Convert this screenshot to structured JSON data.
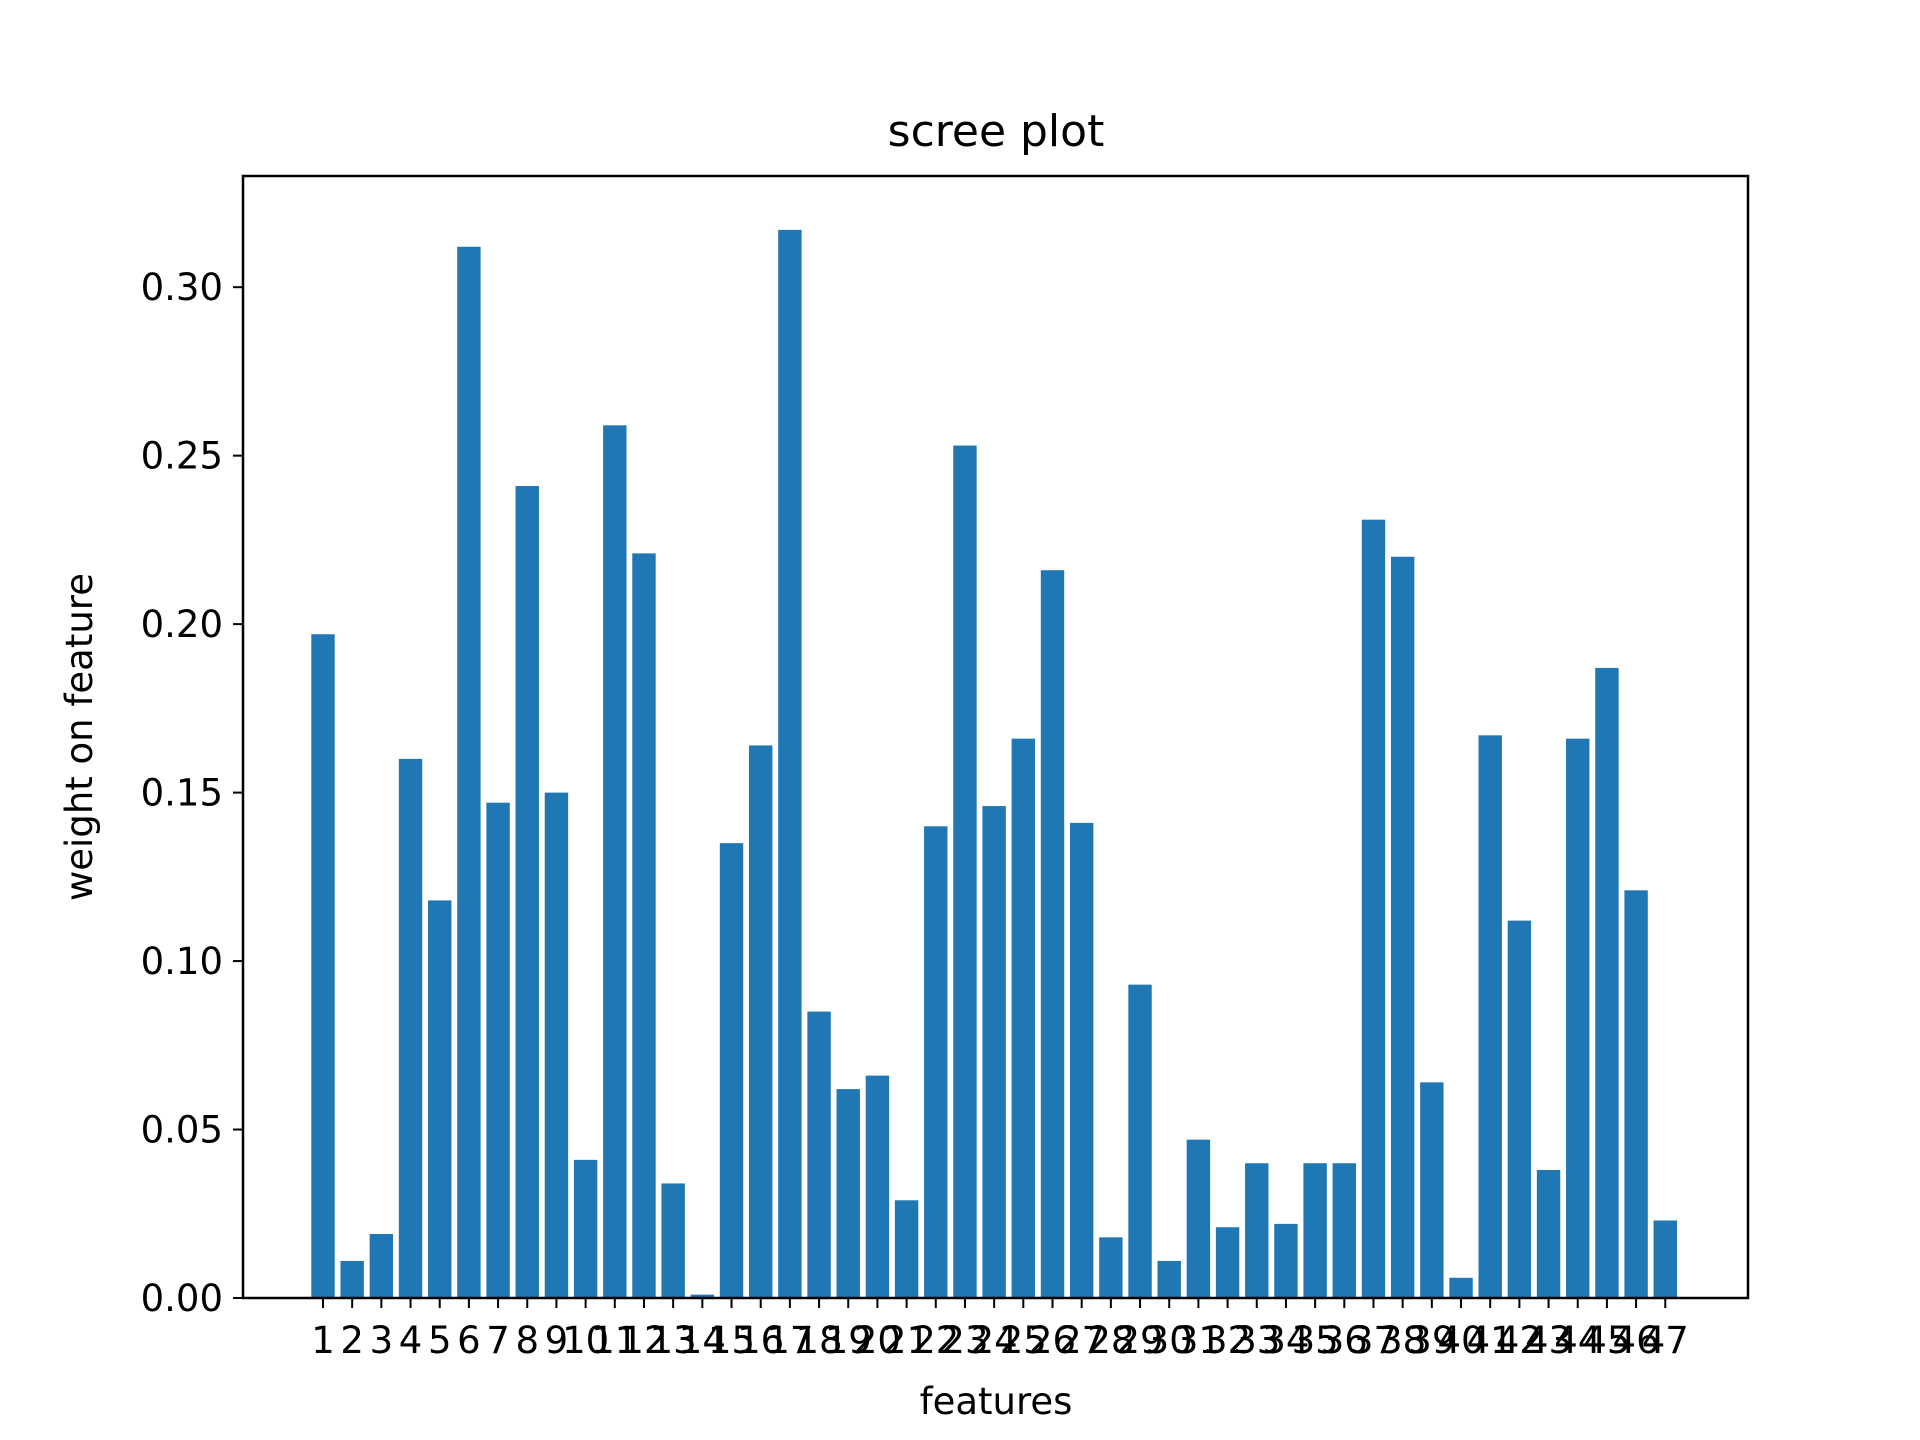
{
  "chart_data": {
    "type": "bar",
    "title": "scree plot",
    "xlabel": "features",
    "ylabel": "weight on feature",
    "categories": [
      "1",
      "2",
      "3",
      "4",
      "5",
      "6",
      "7",
      "8",
      "9",
      "10",
      "11",
      "12",
      "13",
      "14",
      "15",
      "16",
      "17",
      "18",
      "19",
      "20",
      "21",
      "22",
      "23",
      "24",
      "25",
      "26",
      "27",
      "28",
      "29",
      "30",
      "31",
      "32",
      "33",
      "34",
      "35",
      "36",
      "37",
      "38",
      "39",
      "40",
      "41",
      "42",
      "43",
      "44",
      "45",
      "46",
      "47"
    ],
    "values": [
      0.197,
      0.011,
      0.019,
      0.16,
      0.118,
      0.312,
      0.147,
      0.241,
      0.15,
      0.041,
      0.259,
      0.221,
      0.034,
      0.001,
      0.135,
      0.164,
      0.317,
      0.085,
      0.062,
      0.066,
      0.029,
      0.14,
      0.253,
      0.146,
      0.166,
      0.216,
      0.141,
      0.018,
      0.093,
      0.011,
      0.047,
      0.021,
      0.04,
      0.022,
      0.04,
      0.04,
      0.231,
      0.22,
      0.064,
      0.006,
      0.167,
      0.112,
      0.038,
      0.166,
      0.187,
      0.121,
      0.023
    ],
    "ylim": [
      0,
      0.333
    ],
    "yticks": [
      "0.00",
      "0.05",
      "0.10",
      "0.15",
      "0.20",
      "0.25",
      "0.30"
    ],
    "colors": {
      "bar": "#1f77b4",
      "axis": "#000000",
      "background": "#ffffff"
    },
    "grid": false,
    "legend": "none"
  }
}
